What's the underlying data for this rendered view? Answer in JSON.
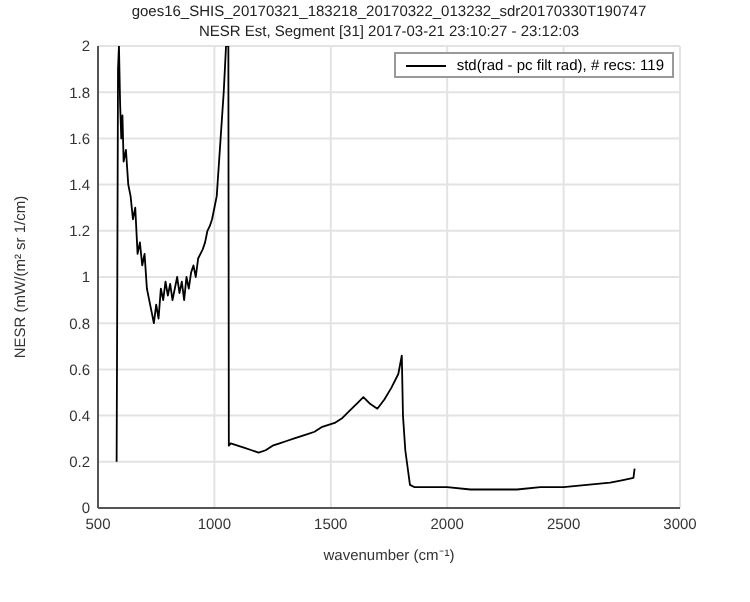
{
  "chart_data": {
    "type": "line",
    "title": "goes16_SHIS_20170321_183218_20170322_013232_sdr20170330T190747",
    "subtitle": "NESR Est, Segment [31] 2017-03-21 23:10:27 - 23:12:03",
    "xlabel": "wavenumber (cm⁻¹)",
    "ylabel": "NESR (mW/(m² sr 1/cm)",
    "x": [
      580,
      583,
      586,
      590,
      595,
      600,
      605,
      610,
      620,
      630,
      640,
      650,
      660,
      670,
      680,
      690,
      700,
      710,
      720,
      730,
      740,
      750,
      760,
      770,
      780,
      790,
      800,
      810,
      820,
      830,
      840,
      850,
      860,
      870,
      880,
      890,
      900,
      910,
      920,
      930,
      940,
      950,
      960,
      970,
      980,
      990,
      1000,
      1010,
      1020,
      1030,
      1040,
      1050,
      1060,
      1062,
      1070,
      1100,
      1130,
      1160,
      1190,
      1220,
      1250,
      1280,
      1310,
      1340,
      1370,
      1400,
      1430,
      1460,
      1490,
      1520,
      1550,
      1580,
      1610,
      1640,
      1670,
      1700,
      1730,
      1760,
      1790,
      1805,
      1810,
      1820,
      1840,
      1860,
      1900,
      2000,
      2100,
      2200,
      2300,
      2400,
      2500,
      2600,
      2700,
      2750,
      2800,
      2805
    ],
    "series": [
      {
        "name": "std(rad - pc filt rad), # recs:  119",
        "color": "#000000",
        "values": [
          0.2,
          1.0,
          1.9,
          2,
          1.75,
          1.6,
          1.7,
          1.5,
          1.55,
          1.4,
          1.35,
          1.25,
          1.3,
          1.1,
          1.15,
          1.05,
          1.1,
          0.95,
          0.9,
          0.85,
          0.8,
          0.88,
          0.82,
          0.95,
          0.9,
          0.98,
          0.92,
          0.97,
          0.9,
          0.95,
          1.0,
          0.93,
          0.98,
          0.9,
          1.0,
          0.95,
          1.02,
          1.05,
          1.0,
          1.08,
          1.1,
          1.12,
          1.15,
          1.2,
          1.22,
          1.25,
          1.3,
          1.35,
          1.5,
          1.65,
          1.8,
          2,
          2,
          0.27,
          0.28,
          0.27,
          0.26,
          0.25,
          0.24,
          0.25,
          0.27,
          0.28,
          0.29,
          0.3,
          0.31,
          0.32,
          0.33,
          0.35,
          0.36,
          0.37,
          0.39,
          0.42,
          0.45,
          0.48,
          0.45,
          0.43,
          0.47,
          0.52,
          0.58,
          0.66,
          0.4,
          0.25,
          0.1,
          0.09,
          0.09,
          0.09,
          0.08,
          0.08,
          0.08,
          0.09,
          0.09,
          0.1,
          0.11,
          0.12,
          0.13,
          0.17
        ]
      }
    ],
    "xlim": [
      500,
      3000
    ],
    "xticks": [
      500,
      1000,
      1500,
      2000,
      2500,
      3000
    ],
    "ylim": [
      0,
      2
    ],
    "yticks": [
      0,
      0.2,
      0.4,
      0.6,
      0.8,
      1,
      1.2,
      1.4,
      1.6,
      1.8,
      2
    ],
    "grid": true,
    "legend": "top right",
    "marker": "none",
    "line_style": "solid"
  }
}
